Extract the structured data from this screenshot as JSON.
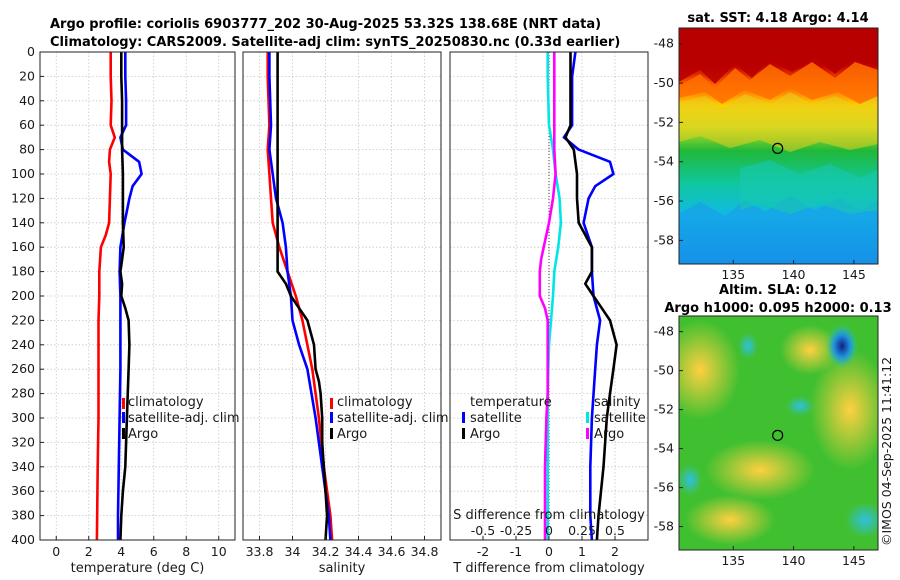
{
  "header": {
    "title_line1": "Argo profile: coriolis 6903777_202 30-Aug-2025 53.32S 138.68E (NRT data)",
    "title_line2": "Climatology: CARS2009. Satellite-adj clim: synTS_20250830.nc (0.33d earlier)"
  },
  "watermark": "©IMOS 04-Sep-2025 11:41:12",
  "colors": {
    "climatology": "#ff0000",
    "satellite": "#0000ff",
    "argo": "#000000",
    "salinity_diff": "#ff00ff",
    "salinity_sat": "#00e5e5"
  },
  "chart_data": [
    {
      "id": "temperature",
      "type": "line",
      "xlabel": "temperature (deg C)",
      "ylabel": "",
      "xlim": [
        -1,
        11
      ],
      "ylim": [
        0,
        400
      ],
      "xticks": [
        0,
        2,
        4,
        6,
        8,
        10
      ],
      "yticks": [
        0,
        20,
        40,
        60,
        80,
        100,
        120,
        140,
        160,
        180,
        200,
        220,
        240,
        260,
        280,
        300,
        320,
        340,
        360,
        380,
        400
      ],
      "legend": [
        "climatology",
        "satellite-adj. clim",
        "Argo"
      ],
      "series": [
        {
          "name": "climatology",
          "color": "#ff0000",
          "depth": [
            0,
            20,
            40,
            60,
            70,
            80,
            90,
            100,
            120,
            140,
            150,
            160,
            170,
            180,
            200,
            220,
            240,
            260,
            300,
            340,
            400
          ],
          "values": [
            3.35,
            3.35,
            3.4,
            3.35,
            3.6,
            3.3,
            3.25,
            3.35,
            3.3,
            3.25,
            3.05,
            2.75,
            2.7,
            2.65,
            2.65,
            2.6,
            2.6,
            2.6,
            2.6,
            2.55,
            2.5
          ]
        },
        {
          "name": "satellite-adj. clim",
          "color": "#0000ff",
          "depth": [
            0,
            20,
            40,
            60,
            70,
            80,
            90,
            100,
            110,
            120,
            140,
            160,
            180,
            200,
            220,
            260,
            300,
            340,
            380,
            400
          ],
          "values": [
            4.25,
            4.25,
            4.3,
            4.3,
            3.95,
            4.1,
            5.1,
            5.25,
            4.7,
            4.5,
            4.2,
            3.95,
            3.9,
            3.95,
            3.95,
            3.95,
            3.9,
            3.85,
            3.8,
            3.8
          ]
        },
        {
          "name": "Argo",
          "color": "#000000",
          "depth": [
            0,
            20,
            40,
            60,
            80,
            100,
            120,
            140,
            160,
            170,
            180,
            190,
            200,
            210,
            220,
            240,
            260,
            300,
            320,
            340,
            360,
            380,
            400
          ],
          "values": [
            4.0,
            4.0,
            4.05,
            4.05,
            4.05,
            4.1,
            4.1,
            4.1,
            4.15,
            4.05,
            3.95,
            4.05,
            4.0,
            4.25,
            4.45,
            4.5,
            4.45,
            4.35,
            4.3,
            4.25,
            4.1,
            4.0,
            3.95
          ]
        }
      ]
    },
    {
      "id": "salinity",
      "type": "line",
      "xlabel": "salinity",
      "xlim": [
        33.7,
        34.9
      ],
      "ylim": [
        0,
        400
      ],
      "xticks": [
        33.8,
        34,
        34.2,
        34.4,
        34.6,
        34.8
      ],
      "legend": [
        "climatology",
        "satellite-adj. clim",
        "Argo"
      ],
      "series": [
        {
          "name": "climatology",
          "color": "#ff0000",
          "depth": [
            0,
            20,
            60,
            80,
            100,
            120,
            140,
            160,
            180,
            200,
            220,
            260,
            300,
            340,
            380,
            400
          ],
          "values": [
            33.85,
            33.85,
            33.86,
            33.85,
            33.86,
            33.87,
            33.88,
            33.92,
            33.97,
            34.02,
            34.06,
            34.12,
            34.16,
            34.19,
            34.23,
            34.24
          ]
        },
        {
          "name": "satellite-adj. clim",
          "color": "#0000ff",
          "depth": [
            0,
            20,
            60,
            80,
            100,
            120,
            140,
            160,
            180,
            200,
            220,
            240,
            260,
            300,
            340,
            380,
            400
          ],
          "values": [
            33.86,
            33.86,
            33.87,
            33.86,
            33.88,
            33.9,
            33.94,
            33.96,
            33.97,
            33.99,
            34.0,
            34.04,
            34.09,
            34.14,
            34.18,
            34.22,
            34.23
          ]
        },
        {
          "name": "Argo",
          "color": "#000000",
          "depth": [
            0,
            40,
            80,
            120,
            160,
            180,
            190,
            200,
            210,
            220,
            240,
            260,
            270,
            280,
            300,
            320,
            340,
            360,
            380,
            400
          ],
          "values": [
            33.91,
            33.91,
            33.91,
            33.91,
            33.91,
            33.91,
            33.96,
            33.99,
            34.04,
            34.09,
            34.13,
            34.14,
            34.16,
            34.17,
            34.18,
            34.18,
            34.19,
            34.2,
            34.21,
            34.2
          ]
        }
      ]
    },
    {
      "id": "difference",
      "type": "line",
      "xlabel": "T difference from climatology",
      "xlabel_top": "S difference from climatology",
      "xlim": [
        -3,
        3
      ],
      "ylim": [
        0,
        400
      ],
      "xticks": [
        -2,
        -1,
        0,
        1,
        2
      ],
      "xticks_salinity": [
        -0.5,
        -0.25,
        0,
        0.25,
        0.5
      ],
      "legend_temperature_title": "temperature",
      "legend_temperature": [
        "satellite",
        "Argo"
      ],
      "legend_salinity_title": "salinity",
      "legend_salinity": [
        "satellite",
        "Argo"
      ],
      "series": [
        {
          "name": "T satellite",
          "color": "#0000ff",
          "depth": [
            0,
            20,
            40,
            60,
            70,
            80,
            90,
            100,
            110,
            120,
            140,
            160,
            180,
            200,
            220,
            240,
            260,
            300,
            340,
            380,
            400
          ],
          "values": [
            0.8,
            0.7,
            0.7,
            0.7,
            0.45,
            0.9,
            1.85,
            1.95,
            1.4,
            1.2,
            1.05,
            1.3,
            1.3,
            1.35,
            1.55,
            1.45,
            1.4,
            1.3,
            1.25,
            1.25,
            1.3
          ]
        },
        {
          "name": "T Argo",
          "color": "#000000",
          "depth": [
            0,
            20,
            40,
            60,
            70,
            80,
            100,
            120,
            140,
            160,
            180,
            190,
            200,
            210,
            220,
            240,
            260,
            280,
            300,
            340,
            380,
            400
          ],
          "values": [
            0.65,
            0.65,
            0.65,
            0.65,
            0.5,
            0.75,
            0.85,
            0.85,
            0.9,
            1.3,
            1.3,
            1.1,
            1.35,
            1.6,
            1.85,
            2.05,
            1.95,
            1.85,
            1.75,
            1.65,
            1.5,
            1.45
          ]
        },
        {
          "name": "S satellite",
          "color": "#00e5e5",
          "depth": [
            0,
            20,
            60,
            80,
            100,
            120,
            140,
            160,
            180,
            200,
            240,
            280,
            300,
            340,
            400
          ],
          "values": [
            -0.01,
            -0.01,
            0.0,
            0.03,
            0.05,
            0.08,
            0.09,
            0.07,
            0.04,
            0.03,
            0.0,
            -0.01,
            -0.01,
            -0.01,
            -0.01
          ]
        },
        {
          "name": "S Argo",
          "color": "#ff00ff",
          "depth": [
            0,
            40,
            80,
            100,
            120,
            140,
            160,
            170,
            180,
            200,
            210,
            220,
            240,
            260,
            280,
            300,
            340,
            400
          ],
          "values": [
            0.04,
            0.04,
            0.04,
            0.05,
            0.03,
            0.0,
            -0.04,
            -0.06,
            -0.07,
            -0.07,
            -0.03,
            -0.01,
            -0.01,
            -0.01,
            -0.01,
            -0.02,
            -0.03,
            -0.03
          ]
        }
      ]
    },
    {
      "id": "sst_map",
      "type": "heatmap",
      "title": "sat. SST: 4.18 Argo: 4.14",
      "xlim": [
        130.5,
        147
      ],
      "ylim": [
        -59.2,
        -47.2
      ],
      "xticks": [
        135,
        140,
        145
      ],
      "yticks": [
        -48,
        -50,
        -52,
        -54,
        -56,
        -58
      ],
      "marker": {
        "lon": 138.68,
        "lat": -53.32
      }
    },
    {
      "id": "sla_map",
      "type": "heatmap",
      "title_line1": "Altim. SLA: 0.12",
      "title_line2": "Argo h1000: 0.095 h2000: 0.13",
      "xlim": [
        130.5,
        147
      ],
      "ylim": [
        -59.2,
        -47.2
      ],
      "xticks": [
        135,
        140,
        145
      ],
      "yticks": [
        -48,
        -50,
        -52,
        -54,
        -56,
        -58
      ],
      "marker": {
        "lon": 138.68,
        "lat": -53.32
      }
    }
  ]
}
